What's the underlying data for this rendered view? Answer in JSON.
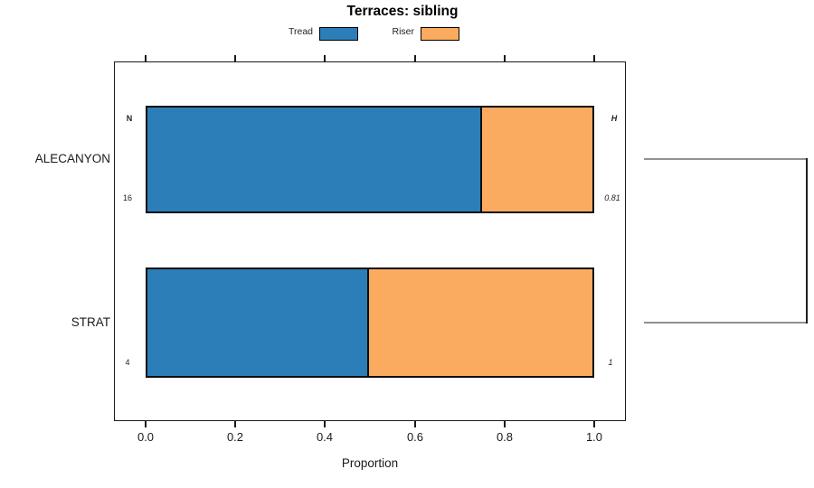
{
  "header": {
    "title": "Terraces: sibling"
  },
  "legend": {
    "items": [
      {
        "label": "Tread",
        "color": "#2c7eb8"
      },
      {
        "label": "Riser",
        "color": "#fbab60"
      }
    ]
  },
  "y_axis": {
    "categories": [
      "ALECANYON",
      "STRAT"
    ]
  },
  "x_axis": {
    "label": "Proportion",
    "ticks": [
      "0.0",
      "0.2",
      "0.4",
      "0.6",
      "0.8",
      "1.0"
    ]
  },
  "annotations": {
    "left_header": "N",
    "right_header": "H",
    "n_values": [
      "16",
      "4"
    ],
    "h_values": [
      "0.81",
      "1"
    ]
  },
  "chart_data": {
    "type": "bar",
    "orientation": "horizontal",
    "stacked": true,
    "title": "Terraces: sibling",
    "categories": [
      "ALECANYON",
      "STRAT"
    ],
    "series": [
      {
        "name": "Tread",
        "color": "#2c7eb8",
        "values": [
          0.75,
          0.5
        ]
      },
      {
        "name": "Riser",
        "color": "#fbab60",
        "values": [
          0.25,
          0.5
        ]
      }
    ],
    "xlabel": "Proportion",
    "xlim": [
      0,
      1
    ],
    "xticks": [
      0.0,
      0.2,
      0.4,
      0.6,
      0.8,
      1.0
    ],
    "annotations": {
      "N": [
        16,
        4
      ],
      "H": [
        0.81,
        1
      ]
    },
    "legend_position": "top",
    "grid": false,
    "dendrogram": {
      "joined_categories": [
        "ALECANYON",
        "STRAT"
      ],
      "side": "right"
    }
  }
}
